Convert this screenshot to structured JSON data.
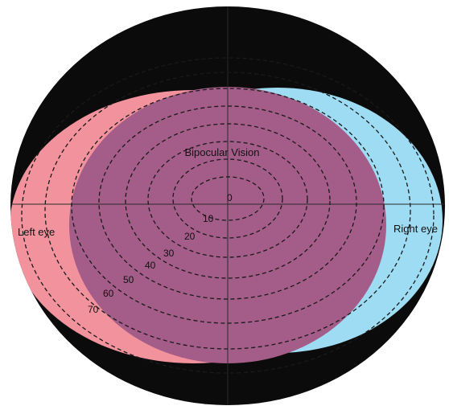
{
  "labels": {
    "center": "Bipocular Vision",
    "left": "Left eye",
    "right": "Right eye"
  },
  "rings": [
    "0",
    "10",
    "20",
    "30",
    "40",
    "50",
    "60",
    "70"
  ],
  "colors": {
    "background": "#0b0b0b",
    "left_eye_field": "#f2929c",
    "right_eye_field": "#9ddcf2",
    "binocular_overlap": "#a45c88"
  }
}
